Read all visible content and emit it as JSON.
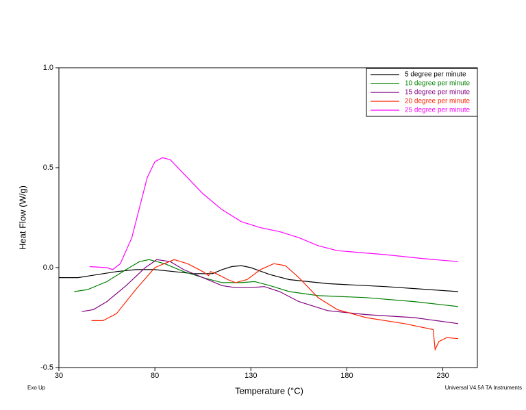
{
  "chart_data": {
    "type": "line",
    "x_label": "Temperature (°C)",
    "y_label": "Heat Flow (W/g)",
    "annotations": [
      "Exo Up",
      "Universal V4.5A TA Instruments"
    ],
    "xlim": [
      30,
      248
    ],
    "xticks": [
      30,
      80,
      130,
      180,
      230
    ],
    "ylim": [
      -0.5,
      1.0
    ],
    "yticks": [
      -0.5,
      {
        "value": 0,
        "label": "0.0"
      },
      0.5,
      {
        "value": 1,
        "label": "1.0"
      }
    ],
    "legend": "upper right",
    "series": [
      {
        "name": "5 degree per minute",
        "color": "#000000",
        "x": [
          30,
          40,
          50,
          60,
          70,
          80,
          90,
          100,
          110,
          115,
          120,
          125,
          130,
          140,
          150,
          170,
          200,
          238
        ],
        "values": [
          -0.05,
          -0.05,
          -0.035,
          -0.02,
          -0.01,
          -0.01,
          -0.02,
          -0.03,
          -0.03,
          -0.01,
          0.005,
          0.01,
          0,
          -0.035,
          -0.06,
          -0.08,
          -0.095,
          -0.12
        ]
      },
      {
        "name": "10 degree per minute",
        "color": "#008000",
        "x": [
          38,
          45,
          55,
          65,
          72,
          77,
          85,
          95,
          105,
          115,
          125,
          132,
          140,
          150,
          165,
          190,
          215,
          238
        ],
        "values": [
          -0.12,
          -0.11,
          -0.07,
          -0.01,
          0.03,
          0.04,
          0.02,
          -0.02,
          -0.05,
          -0.075,
          -0.075,
          -0.07,
          -0.09,
          -0.12,
          -0.14,
          -0.15,
          -0.17,
          -0.195
        ]
      },
      {
        "name": "15 degree per minute",
        "color": "#800080",
        "x": [
          42,
          48,
          55,
          65,
          75,
          81,
          88,
          95,
          105,
          115,
          122,
          130,
          137,
          145,
          155,
          170,
          190,
          215,
          238
        ],
        "values": [
          -0.22,
          -0.21,
          -0.17,
          -0.09,
          0.0,
          0.04,
          0.03,
          -0.01,
          -0.05,
          -0.09,
          -0.1,
          -0.1,
          -0.095,
          -0.12,
          -0.17,
          -0.215,
          -0.235,
          -0.25,
          -0.28
        ]
      },
      {
        "name": "20 degree per minute",
        "color": "#ff2000",
        "x": [
          47,
          53,
          60,
          70,
          80,
          90,
          97,
          105,
          108,
          109,
          112,
          118,
          122,
          128,
          135,
          142,
          148,
          155,
          165,
          175,
          190,
          210,
          225,
          226,
          228,
          232,
          238
        ],
        "values": [
          -0.265,
          -0.265,
          -0.23,
          -0.11,
          0.0,
          0.04,
          0.02,
          -0.02,
          -0.04,
          -0.02,
          -0.03,
          -0.06,
          -0.075,
          -0.06,
          -0.01,
          0.02,
          0.01,
          -0.05,
          -0.15,
          -0.21,
          -0.25,
          -0.28,
          -0.31,
          -0.41,
          -0.37,
          -0.35,
          -0.355
        ]
      },
      {
        "name": "25 degree per minute",
        "color": "#ff00ff",
        "x": [
          46,
          55,
          58,
          62,
          68,
          72,
          76,
          80,
          84,
          88,
          95,
          105,
          115,
          125,
          135,
          145,
          155,
          165,
          175,
          200,
          220,
          238
        ],
        "values": [
          0.005,
          0.0,
          -0.01,
          0.02,
          0.15,
          0.3,
          0.45,
          0.53,
          0.55,
          0.54,
          0.47,
          0.37,
          0.29,
          0.23,
          0.2,
          0.18,
          0.15,
          0.11,
          0.085,
          0.065,
          0.045,
          0.03
        ]
      }
    ]
  }
}
